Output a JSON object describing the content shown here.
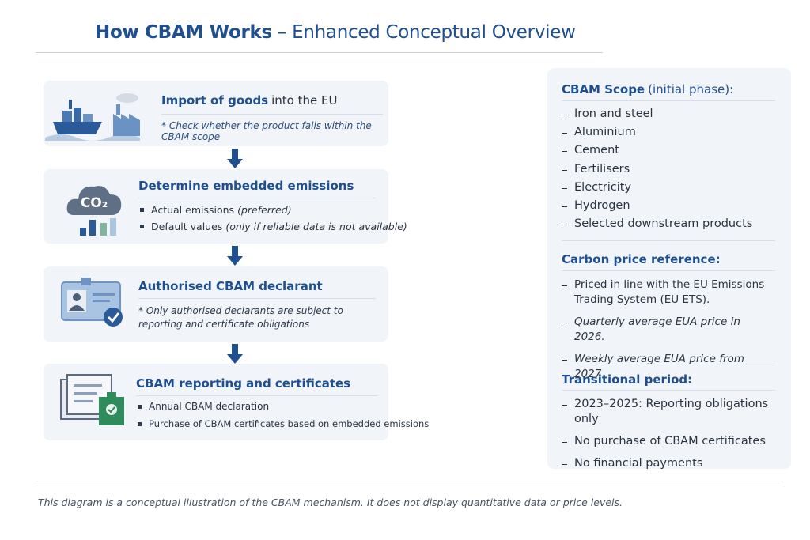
{
  "title": {
    "main": "How CBAM Works",
    "sub": "– Enhanced Conceptual Overview"
  },
  "steps": [
    {
      "title_bold": "Import of goods",
      "title_rest": "into the EU",
      "note": "* Check whether the product falls within the CBAM scope"
    },
    {
      "title": "Determine embedded emissions",
      "icon_text": "CO₂",
      "bullets": [
        {
          "text": "Actual emissions",
          "note": "(preferred)"
        },
        {
          "text": "Default values",
          "note": "(only if reliable data is not available)"
        }
      ]
    },
    {
      "title": "Authorised CBAM declarant",
      "note": "* Only authorised declarants are subject to reporting and certificate obligations"
    },
    {
      "title": "CBAM reporting and certificates",
      "bullets": [
        "Annual CBAM declaration",
        "Purchase of CBAM certificates based on embedded emissions"
      ]
    }
  ],
  "sidebar": [
    {
      "heading_bold": "CBAM Scope",
      "heading_rest": "(initial phase):",
      "items": [
        "Iron and steel",
        "Aluminium",
        "Cement",
        "Fertilisers",
        "Electricity",
        "Hydrogen",
        "Selected downstream products"
      ]
    },
    {
      "heading_bold": "Carbon price reference:",
      "items": [
        "Priced in line with the EU Emissions Trading System (EU ETS).",
        "Quarterly average EUA price in 2026.",
        "Weekly average EUA price from 2027"
      ]
    },
    {
      "heading_bold": "Transitional period:",
      "items": [
        "2023–2025: Reporting obligations only",
        "No purchase of CBAM certificates",
        "No financial payments"
      ]
    }
  ],
  "footer": "This diagram is a conceptual illustration of the CBAM mechanism. It does not display quantitative data or price levels."
}
